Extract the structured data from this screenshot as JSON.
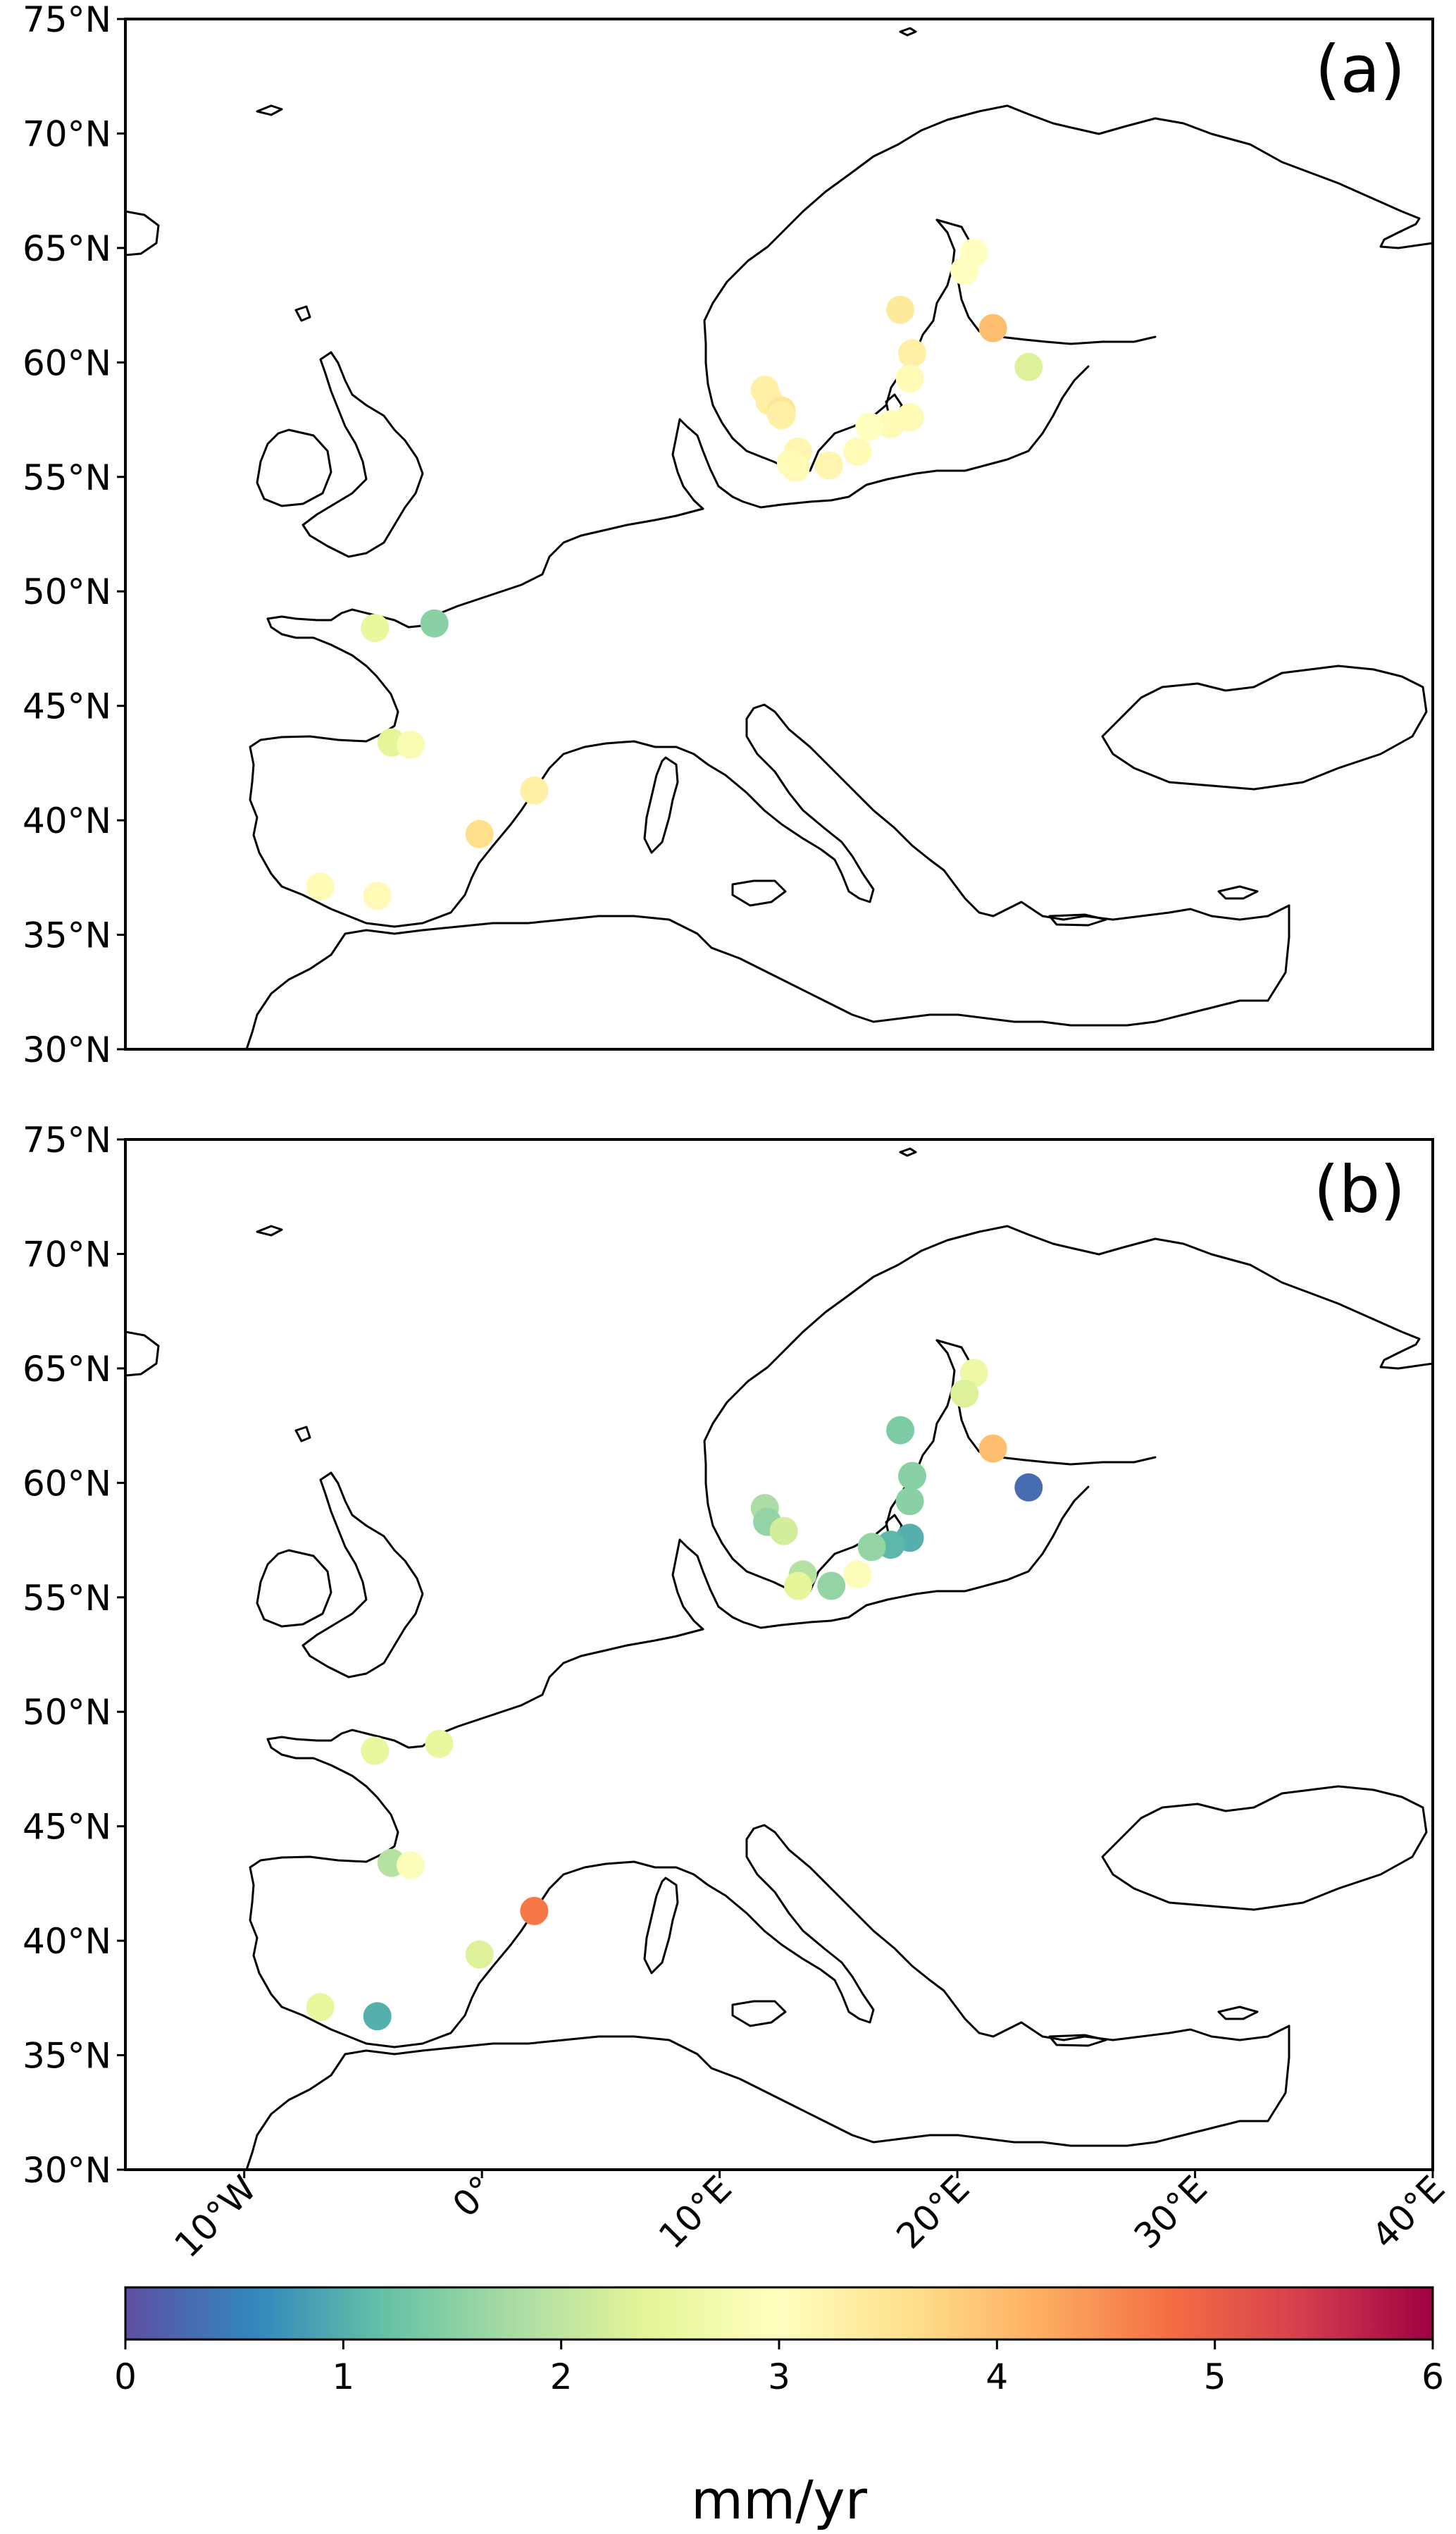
{
  "chart_data": [
    {
      "type": "scatter",
      "panel_label": "(a)",
      "title": "",
      "xlim": [
        -15,
        40
      ],
      "ylim": [
        30,
        75
      ],
      "y_ticks": [
        "30°N",
        "35°N",
        "40°N",
        "45°N",
        "50°N",
        "55°N",
        "60°N",
        "65°N",
        "70°N",
        "75°N"
      ],
      "x_ticks": [],
      "colormap": "Spectral_r",
      "points": [
        {
          "lon": 20.7,
          "lat": 64.8,
          "v": 3.0
        },
        {
          "lon": 20.3,
          "lat": 64.0,
          "v": 3.0
        },
        {
          "lon": 17.6,
          "lat": 62.3,
          "v": 3.4
        },
        {
          "lon": 21.5,
          "lat": 61.5,
          "v": 4.0
        },
        {
          "lon": 18.1,
          "lat": 60.4,
          "v": 3.3
        },
        {
          "lon": 23.0,
          "lat": 59.8,
          "v": 2.3
        },
        {
          "lon": 18.0,
          "lat": 59.3,
          "v": 3.1
        },
        {
          "lon": 11.9,
          "lat": 58.8,
          "v": 3.3
        },
        {
          "lon": 12.1,
          "lat": 58.3,
          "v": 3.3
        },
        {
          "lon": 12.6,
          "lat": 57.9,
          "v": 3.5
        },
        {
          "lon": 12.6,
          "lat": 57.7,
          "v": 3.3
        },
        {
          "lon": 18.0,
          "lat": 57.6,
          "v": 3.1
        },
        {
          "lon": 17.2,
          "lat": 57.3,
          "v": 3.1
        },
        {
          "lon": 16.3,
          "lat": 57.2,
          "v": 3.0
        },
        {
          "lon": 13.3,
          "lat": 56.1,
          "v": 3.2
        },
        {
          "lon": 13.0,
          "lat": 55.6,
          "v": 3.1
        },
        {
          "lon": 13.2,
          "lat": 55.4,
          "v": 3.1
        },
        {
          "lon": 14.6,
          "lat": 55.5,
          "v": 3.2
        },
        {
          "lon": 15.8,
          "lat": 56.1,
          "v": 3.1
        },
        {
          "lon": -4.5,
          "lat": 48.4,
          "v": 2.5
        },
        {
          "lon": -2.0,
          "lat": 48.6,
          "v": 1.5
        },
        {
          "lon": -3.8,
          "lat": 43.4,
          "v": 2.4
        },
        {
          "lon": -3.0,
          "lat": 43.3,
          "v": 2.8
        },
        {
          "lon": 2.2,
          "lat": 41.3,
          "v": 3.3
        },
        {
          "lon": -0.1,
          "lat": 39.4,
          "v": 3.6
        },
        {
          "lon": -6.8,
          "lat": 37.1,
          "v": 3.1
        },
        {
          "lon": -4.4,
          "lat": 36.7,
          "v": 3.1
        }
      ]
    },
    {
      "type": "scatter",
      "panel_label": "(b)",
      "title": "",
      "xlim": [
        -15,
        40
      ],
      "ylim": [
        30,
        75
      ],
      "y_ticks": [
        "30°N",
        "35°N",
        "40°N",
        "45°N",
        "50°N",
        "55°N",
        "60°N",
        "65°N",
        "70°N",
        "75°N"
      ],
      "x_ticks": [
        "10°W",
        "0°",
        "10°E",
        "20°E",
        "30°E",
        "40°E"
      ],
      "colormap": "Spectral_r",
      "points": [
        {
          "lon": 20.7,
          "lat": 64.8,
          "v": 2.6
        },
        {
          "lon": 20.3,
          "lat": 63.9,
          "v": 2.3
        },
        {
          "lon": 17.6,
          "lat": 62.3,
          "v": 1.4
        },
        {
          "lon": 21.5,
          "lat": 61.5,
          "v": 4.0
        },
        {
          "lon": 18.1,
          "lat": 60.3,
          "v": 1.5
        },
        {
          "lon": 23.0,
          "lat": 59.8,
          "v": 0.3
        },
        {
          "lon": 18.0,
          "lat": 59.2,
          "v": 1.5
        },
        {
          "lon": 11.9,
          "lat": 58.9,
          "v": 1.8
        },
        {
          "lon": 12.0,
          "lat": 58.3,
          "v": 1.6
        },
        {
          "lon": 12.7,
          "lat": 57.9,
          "v": 2.2
        },
        {
          "lon": 18.0,
          "lat": 57.6,
          "v": 1.0
        },
        {
          "lon": 17.2,
          "lat": 57.3,
          "v": 1.1
        },
        {
          "lon": 16.4,
          "lat": 57.2,
          "v": 1.6
        },
        {
          "lon": 13.5,
          "lat": 56.0,
          "v": 1.9
        },
        {
          "lon": 13.3,
          "lat": 55.5,
          "v": 2.4
        },
        {
          "lon": 14.7,
          "lat": 55.5,
          "v": 1.6
        },
        {
          "lon": 15.8,
          "lat": 56.0,
          "v": 2.9
        },
        {
          "lon": -4.5,
          "lat": 48.3,
          "v": 2.5
        },
        {
          "lon": -1.8,
          "lat": 48.6,
          "v": 2.5
        },
        {
          "lon": -3.8,
          "lat": 43.4,
          "v": 1.9
        },
        {
          "lon": -3.0,
          "lat": 43.3,
          "v": 2.9
        },
        {
          "lon": 2.2,
          "lat": 41.3,
          "v": 4.7
        },
        {
          "lon": -0.1,
          "lat": 39.4,
          "v": 2.3
        },
        {
          "lon": -6.8,
          "lat": 37.1,
          "v": 2.5
        },
        {
          "lon": -4.4,
          "lat": 36.7,
          "v": 1.0
        }
      ]
    }
  ],
  "colorbar": {
    "label": "mm/yr",
    "range": [
      0,
      6
    ],
    "ticks": [
      "0",
      "1",
      "2",
      "3",
      "4",
      "5",
      "6"
    ],
    "colormap": "Spectral_r",
    "stops": [
      "#5e4fa2",
      "#3288bd",
      "#66c2a5",
      "#abdda4",
      "#e6f598",
      "#ffffbf",
      "#fee08b",
      "#fdae61",
      "#f46d43",
      "#d53e4f",
      "#9e0142"
    ]
  }
}
